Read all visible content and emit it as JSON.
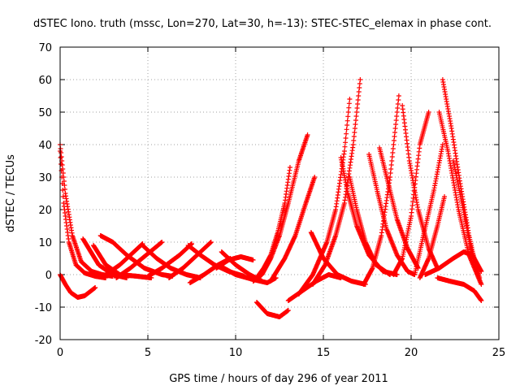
{
  "chart_data": {
    "type": "scatter",
    "title": "dSTEC Iono. truth (mssc, Lon=270, Lat=30, h=-13): STEC-STEC_elemax in phase cont.",
    "xlabel": "GPS time / hours of day 296 of year 2011",
    "ylabel": "dSTEC  / TECUs",
    "xlim": [
      0,
      25
    ],
    "ylim": [
      -20,
      70
    ],
    "x_ticks": [
      0,
      5,
      10,
      15,
      20,
      25
    ],
    "x_tick_labels": [
      "0",
      "5",
      "10",
      "15",
      "20",
      "25"
    ],
    "y_ticks": [
      -20,
      -10,
      0,
      10,
      20,
      30,
      40,
      50,
      60,
      70
    ],
    "y_tick_labels": [
      "-20",
      "-10",
      "0",
      "10",
      "20",
      "30",
      "40",
      "50",
      "60",
      "70"
    ],
    "grid": true,
    "marker": "+",
    "color": "#ff0000",
    "series": [
      {
        "x": [
          0.0,
          0.3,
          0.7,
          1.2,
          1.8,
          2.4,
          3.0
        ],
        "y": [
          40,
          25,
          12,
          4,
          1,
          0,
          -0.5
        ]
      },
      {
        "x": [
          0.0,
          0.2,
          0.5,
          0.9,
          1.4,
          2.0,
          2.6
        ],
        "y": [
          38,
          22,
          10,
          3,
          0.5,
          -0.5,
          -1
        ]
      },
      {
        "x": [
          0.0,
          0.3,
          0.6,
          1.0,
          1.4,
          2.0
        ],
        "y": [
          0,
          -3,
          -5.5,
          -7,
          -6.5,
          -4
        ]
      },
      {
        "x": [
          1.3,
          2.2,
          3.0,
          3.8
        ],
        "y": [
          11,
          3,
          0,
          -1
        ]
      },
      {
        "x": [
          1.9,
          2.6,
          3.4,
          4.4,
          5.2
        ],
        "y": [
          9,
          3,
          0,
          -0.5,
          -1
        ]
      },
      {
        "x": [
          2.3,
          3.0,
          3.8,
          4.8,
          5.8,
          6.4
        ],
        "y": [
          12,
          10,
          6,
          2,
          0,
          -0.5
        ]
      },
      {
        "x": [
          2.6,
          3.4,
          4.0,
          4.7
        ],
        "y": [
          0,
          3,
          6,
          9.5
        ]
      },
      {
        "x": [
          4.7,
          5.5,
          6.3,
          7.2,
          8.0
        ],
        "y": [
          9,
          5,
          2,
          0,
          -1
        ]
      },
      {
        "x": [
          3.2,
          4.0,
          4.9,
          5.8
        ],
        "y": [
          -1,
          2,
          6,
          10
        ]
      },
      {
        "x": [
          5.0,
          5.8,
          6.8,
          7.5
        ],
        "y": [
          -0.5,
          2,
          6,
          9.5
        ]
      },
      {
        "x": [
          6.2,
          7.0,
          7.8,
          8.6
        ],
        "y": [
          -1,
          2,
          6,
          10
        ]
      },
      {
        "x": [
          7.3,
          8.0,
          8.8,
          9.6,
          10.5
        ],
        "y": [
          9,
          6,
          3,
          1,
          -0.5
        ]
      },
      {
        "x": [
          7.4,
          8.2,
          9.0,
          9.7
        ],
        "y": [
          -2.5,
          0,
          3,
          5
        ]
      },
      {
        "x": [
          8.9,
          9.6,
          10.3,
          11.0
        ],
        "y": [
          2,
          4.5,
          5.5,
          4.5
        ]
      },
      {
        "x": [
          9.2,
          10.0,
          10.8,
          11.5
        ],
        "y": [
          7,
          3,
          0,
          -2
        ]
      },
      {
        "x": [
          9.0,
          10.0,
          11.0,
          11.8,
          12.3
        ],
        "y": [
          3,
          0,
          -1.5,
          -2.5,
          -1
        ]
      },
      {
        "x": [
          11.2,
          11.8,
          12.5,
          13.0
        ],
        "y": [
          -8.5,
          -12,
          -13,
          -11
        ]
      },
      {
        "x": [
          11.0,
          11.5,
          12.0,
          12.5,
          13.0,
          13.6,
          14.1
        ],
        "y": [
          -2,
          0,
          5,
          12,
          22,
          35,
          43
        ]
      },
      {
        "x": [
          11.2,
          11.6,
          12.0,
          12.4,
          12.8,
          13.1
        ],
        "y": [
          -1,
          2,
          6,
          13,
          22,
          33
        ]
      },
      {
        "x": [
          12.0,
          12.8,
          13.4,
          14.0,
          14.5
        ],
        "y": [
          -2,
          5,
          12,
          22,
          30
        ]
      },
      {
        "x": [
          13.0,
          13.8,
          14.6,
          15.3,
          16.0
        ],
        "y": [
          -8,
          -5,
          -2,
          0,
          -1
        ]
      },
      {
        "x": [
          14.3,
          15.0,
          15.8,
          16.6,
          17.4
        ],
        "y": [
          13,
          5,
          0,
          -2,
          -3
        ]
      },
      {
        "x": [
          13.6,
          14.4,
          15.2,
          15.7,
          16.2,
          16.5
        ],
        "y": [
          -6,
          0,
          10,
          20,
          38,
          54
        ]
      },
      {
        "x": [
          14.4,
          15.1,
          15.7,
          16.2,
          16.7,
          17.1
        ],
        "y": [
          -3,
          3,
          12,
          22,
          40,
          60
        ]
      },
      {
        "x": [
          16.0,
          16.4,
          16.9,
          17.6,
          18.4,
          19.2
        ],
        "y": [
          36,
          25,
          15,
          6,
          1,
          0
        ]
      },
      {
        "x": [
          16.5,
          16.9,
          17.4,
          18.0,
          18.8
        ],
        "y": [
          30,
          20,
          10,
          3,
          0
        ]
      },
      {
        "x": [
          17.6,
          18.1,
          18.6,
          19.2,
          19.8,
          20.2
        ],
        "y": [
          37,
          25,
          14,
          6,
          1,
          0
        ]
      },
      {
        "x": [
          18.2,
          18.7,
          19.2,
          19.8,
          20.4
        ],
        "y": [
          39,
          28,
          17,
          8,
          2
        ]
      },
      {
        "x": [
          17.3,
          17.8,
          18.3,
          18.8,
          19.3
        ],
        "y": [
          -3,
          2,
          12,
          30,
          55
        ]
      },
      {
        "x": [
          19.5,
          19.9,
          20.4,
          21.0,
          21.5
        ],
        "y": [
          52,
          35,
          20,
          8,
          2
        ]
      },
      {
        "x": [
          19.0,
          19.5,
          20.0,
          20.5,
          21.0
        ],
        "y": [
          0,
          5,
          18,
          40,
          50
        ]
      },
      {
        "x": [
          20.2,
          20.7,
          21.3,
          21.8
        ],
        "y": [
          0,
          12,
          26,
          40
        ]
      },
      {
        "x": [
          20.5,
          21.0,
          21.5,
          21.9
        ],
        "y": [
          -1,
          5,
          15,
          24
        ]
      },
      {
        "x": [
          21.8,
          22.3,
          22.8,
          23.3,
          23.8
        ],
        "y": [
          60,
          45,
          28,
          12,
          0
        ]
      },
      {
        "x": [
          21.6,
          22.1,
          22.7,
          23.3,
          24.0
        ],
        "y": [
          50,
          38,
          20,
          6,
          -3
        ]
      },
      {
        "x": [
          22.4,
          22.9,
          23.4,
          23.9
        ],
        "y": [
          35,
          22,
          8,
          -1
        ]
      },
      {
        "x": [
          20.8,
          21.6,
          22.4,
          23.0,
          23.5,
          24.0
        ],
        "y": [
          0,
          2,
          5,
          7,
          6,
          1
        ]
      },
      {
        "x": [
          21.5,
          22.2,
          23.0,
          23.6,
          24.0
        ],
        "y": [
          -1,
          -2,
          -3,
          -5,
          -8
        ]
      }
    ]
  }
}
